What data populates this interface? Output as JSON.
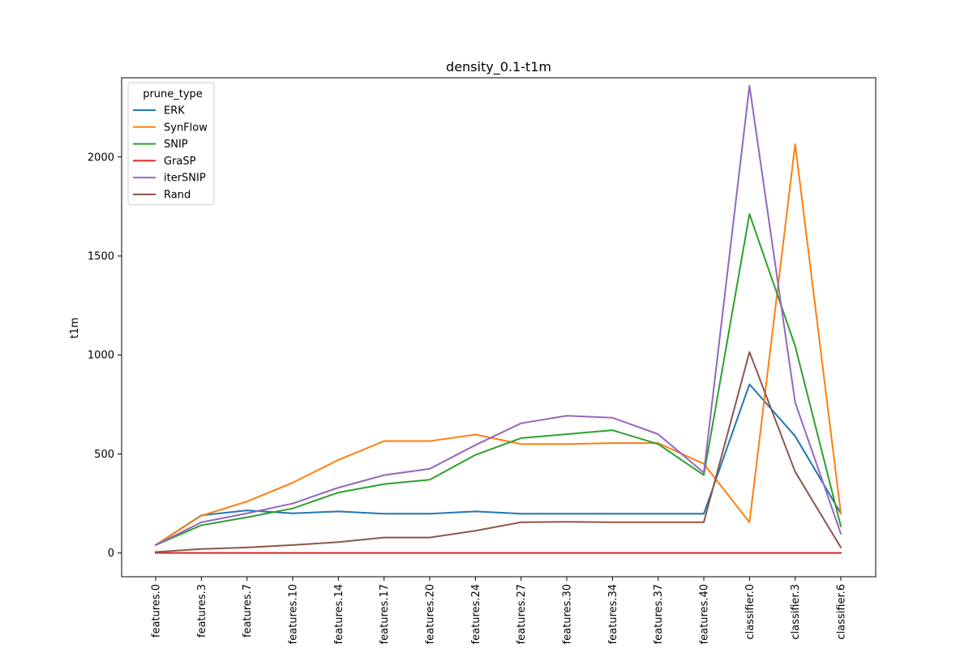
{
  "chart_data": {
    "type": "line",
    "title": "density_0.1-t1m",
    "xlabel": "",
    "ylabel": "t1m",
    "ylim": [
      -120,
      2400
    ],
    "yticks": [
      0,
      500,
      1000,
      1500,
      2000
    ],
    "grid": false,
    "legend": {
      "title": "prune_type",
      "placement": "top-left"
    },
    "categories": [
      "features.0",
      "features.3",
      "features.7",
      "features.10",
      "features.14",
      "features.17",
      "features.20",
      "features.24",
      "features.27",
      "features.30",
      "features.34",
      "features.37",
      "features.40",
      "classifier.0",
      "classifier.3",
      "classifier.6"
    ],
    "series": [
      {
        "name": "ERK",
        "color": "#1f77b4",
        "values": [
          40,
          190,
          215,
          200,
          210,
          198,
          198,
          210,
          198,
          198,
          198,
          198,
          198,
          852,
          590,
          200
        ]
      },
      {
        "name": "SynFlow",
        "color": "#ff7f0e",
        "values": [
          40,
          188,
          260,
          355,
          470,
          565,
          565,
          598,
          550,
          550,
          555,
          555,
          450,
          155,
          2065,
          200
        ]
      },
      {
        "name": "SNIP",
        "color": "#2ca02c",
        "values": [
          40,
          140,
          180,
          225,
          305,
          348,
          370,
          495,
          580,
          600,
          620,
          550,
          393,
          1712,
          1045,
          135
        ]
      },
      {
        "name": "GraSP",
        "color": "#d62728",
        "values": [
          0,
          0,
          0,
          0,
          0,
          0,
          0,
          0,
          0,
          0,
          0,
          0,
          0,
          0,
          0,
          0
        ]
      },
      {
        "name": "iterSNIP",
        "color": "#9467bd",
        "values": [
          40,
          155,
          200,
          250,
          330,
          393,
          425,
          545,
          655,
          693,
          683,
          600,
          405,
          2360,
          760,
          98
        ]
      },
      {
        "name": "Rand",
        "color": "#8c564b",
        "values": [
          5,
          20,
          28,
          40,
          55,
          78,
          78,
          112,
          155,
          157,
          155,
          155,
          155,
          1015,
          410,
          28
        ]
      }
    ]
  }
}
